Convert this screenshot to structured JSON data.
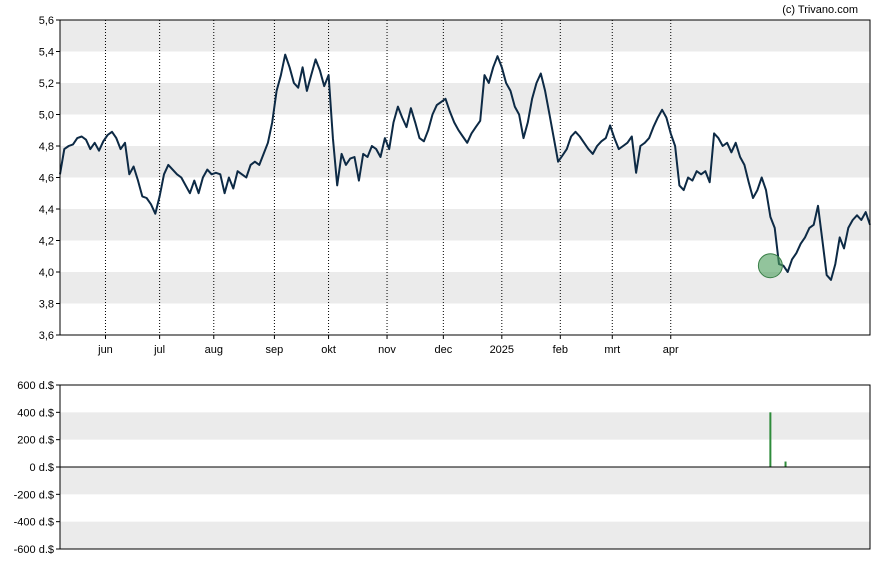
{
  "credit": "(c) Trivano.com",
  "chart_data": [
    {
      "type": "line",
      "x_labels": [
        "jun",
        "jul",
        "aug",
        "sep",
        "okt",
        "nov",
        "dec",
        "2025",
        "feb",
        "mrt",
        "apr"
      ],
      "y_ticks": [
        "3,6",
        "3,8",
        "4,0",
        "4,2",
        "4,4",
        "4,6",
        "4,8",
        "5,0",
        "5,2",
        "5,4",
        "5,6"
      ],
      "ylim": [
        3.6,
        5.6
      ],
      "grid": "horizontal bands + vertical dotted month lines",
      "colors": {
        "line": "#0d2a45",
        "band": "#ebebeb",
        "marker": "#4a9c5a"
      },
      "marker": {
        "index": 164,
        "value": 4.04
      },
      "values": [
        4.62,
        4.78,
        4.8,
        4.81,
        4.85,
        4.86,
        4.84,
        4.78,
        4.82,
        4.77,
        4.83,
        4.87,
        4.89,
        4.85,
        4.78,
        4.82,
        4.62,
        4.67,
        4.58,
        4.48,
        4.47,
        4.43,
        4.37,
        4.48,
        4.62,
        4.68,
        4.65,
        4.62,
        4.6,
        4.55,
        4.5,
        4.58,
        4.5,
        4.6,
        4.65,
        4.62,
        4.63,
        4.62,
        4.5,
        4.6,
        4.53,
        4.64,
        4.62,
        4.6,
        4.68,
        4.7,
        4.68,
        4.75,
        4.82,
        4.95,
        5.15,
        5.25,
        5.38,
        5.3,
        5.2,
        5.17,
        5.3,
        5.15,
        5.25,
        5.35,
        5.28,
        5.18,
        5.25,
        4.85,
        4.55,
        4.75,
        4.68,
        4.72,
        4.73,
        4.58,
        4.75,
        4.73,
        4.8,
        4.78,
        4.73,
        4.85,
        4.78,
        4.95,
        5.05,
        4.98,
        4.92,
        5.04,
        4.95,
        4.85,
        4.83,
        4.9,
        5.0,
        5.06,
        5.08,
        5.1,
        5.02,
        4.95,
        4.9,
        4.86,
        4.82,
        4.88,
        4.92,
        4.96,
        5.25,
        5.2,
        5.3,
        5.37,
        5.3,
        5.2,
        5.15,
        5.05,
        5.0,
        4.85,
        4.95,
        5.1,
        5.2,
        5.26,
        5.15,
        5.0,
        4.85,
        4.7,
        4.74,
        4.78,
        4.86,
        4.89,
        4.86,
        4.82,
        4.78,
        4.75,
        4.8,
        4.83,
        4.85,
        4.93,
        4.85,
        4.78,
        4.8,
        4.82,
        4.86,
        4.63,
        4.8,
        4.82,
        4.85,
        4.92,
        4.98,
        5.03,
        4.98,
        4.88,
        4.8,
        4.55,
        4.52,
        4.6,
        4.58,
        4.64,
        4.62,
        4.64,
        4.57,
        4.88,
        4.85,
        4.8,
        4.82,
        4.76,
        4.82,
        4.73,
        4.68,
        4.57,
        4.47,
        4.52,
        4.6,
        4.52,
        4.35,
        4.28,
        4.05,
        4.04,
        4.0,
        4.08,
        4.12,
        4.18,
        4.22,
        4.28,
        4.3,
        4.42,
        4.2,
        3.98,
        3.95,
        4.05,
        4.22,
        4.15,
        4.28,
        4.33,
        4.36,
        4.33,
        4.38,
        4.3
      ],
      "x_label_positions": [
        10.5,
        23,
        35.5,
        49.5,
        62,
        75.5,
        88.5,
        102,
        115.5,
        127.5,
        141
      ]
    },
    {
      "type": "bar",
      "y_ticks": [
        "600 d.$",
        "400 d.$",
        "200 d.$",
        "0 d.$",
        "-200 d.$",
        "-400 d.$",
        "-600 d.$"
      ],
      "ylim": [
        -600,
        600
      ],
      "values": [
        {
          "x": 164,
          "value": 400
        },
        {
          "x": 167.5,
          "value": 40
        }
      ],
      "colors": {
        "bar": "#2e8b3a",
        "band": "#ebebeb"
      }
    }
  ]
}
